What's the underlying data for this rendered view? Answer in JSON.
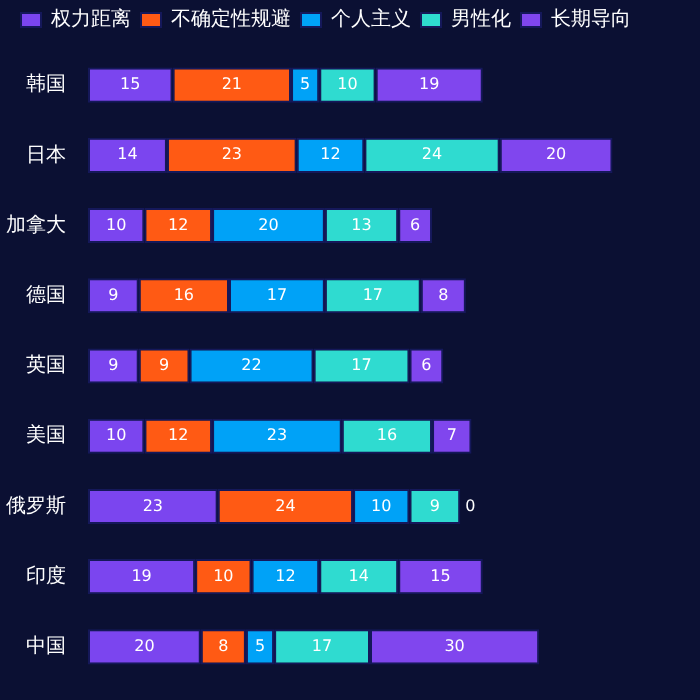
{
  "chart_data": {
    "type": "bar",
    "orientation": "horizontal",
    "stacked": true,
    "data_labels": true,
    "legend": "top",
    "tick_labels": "y",
    "categories": [
      "韩国",
      "日本",
      "加拿大",
      "德国",
      "英国",
      "美国",
      "俄罗斯",
      "印度",
      "中国"
    ],
    "series": [
      {
        "name": "权力距离",
        "color": "#7b45ef",
        "values": [
          15,
          14,
          10,
          9,
          9,
          10,
          23,
          19,
          20
        ]
      },
      {
        "name": "不确定性规避",
        "color": "#ff5a14",
        "values": [
          21,
          23,
          12,
          16,
          9,
          12,
          24,
          10,
          8
        ]
      },
      {
        "name": "个人主义",
        "color": "#00a2f7",
        "values": [
          5,
          12,
          20,
          17,
          22,
          23,
          10,
          12,
          5
        ]
      },
      {
        "name": "男性化",
        "color": "#2fdbd0",
        "values": [
          10,
          24,
          13,
          17,
          17,
          16,
          9,
          14,
          17
        ]
      },
      {
        "name": "长期导向",
        "color": "#8046ee",
        "values": [
          19,
          20,
          6,
          8,
          6,
          7,
          0,
          15,
          30
        ]
      }
    ]
  }
}
